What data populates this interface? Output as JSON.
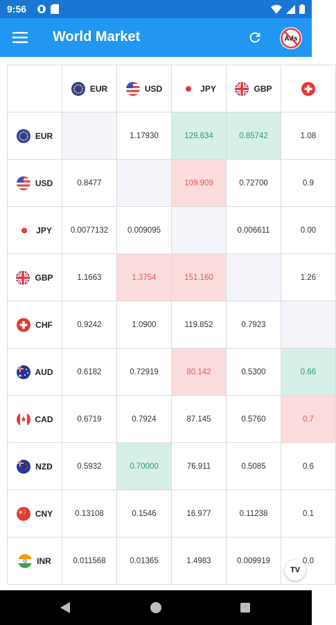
{
  "status_bar": {
    "time": "9:56"
  },
  "app_bar": {
    "title": "World Market",
    "ads_label": "Ads"
  },
  "columns": [
    {
      "code": "EUR",
      "flag": "eu-flag-icon"
    },
    {
      "code": "USD",
      "flag": "us-flag-icon"
    },
    {
      "code": "JPY",
      "flag": "jp-flag-icon"
    },
    {
      "code": "GBP",
      "flag": "gb-flag-icon"
    },
    {
      "code": "",
      "flag": "ch-flag-icon"
    }
  ],
  "rows": [
    {
      "code": "EUR",
      "flag": "eu-flag-icon",
      "cells": [
        {
          "v": "",
          "s": "diag"
        },
        {
          "v": "1.17930",
          "s": ""
        },
        {
          "v": "129.634",
          "s": "up"
        },
        {
          "v": "0.85742",
          "s": "up"
        },
        {
          "v": "1.08",
          "s": ""
        }
      ]
    },
    {
      "code": "USD",
      "flag": "us-flag-icon",
      "cells": [
        {
          "v": "0.8477",
          "s": ""
        },
        {
          "v": "",
          "s": "diag"
        },
        {
          "v": "109.909",
          "s": "down"
        },
        {
          "v": "0.72700",
          "s": ""
        },
        {
          "v": "0.9",
          "s": ""
        }
      ]
    },
    {
      "code": "JPY",
      "flag": "jp-flag-icon",
      "cells": [
        {
          "v": "0.0077132",
          "s": ""
        },
        {
          "v": "0.009095",
          "s": ""
        },
        {
          "v": "",
          "s": "diag"
        },
        {
          "v": "0.006611",
          "s": ""
        },
        {
          "v": "0.00",
          "s": ""
        }
      ]
    },
    {
      "code": "GBP",
      "flag": "gb-flag-icon",
      "cells": [
        {
          "v": "1.1663",
          "s": ""
        },
        {
          "v": "1.3754",
          "s": "down"
        },
        {
          "v": "151.160",
          "s": "down"
        },
        {
          "v": "",
          "s": "diag"
        },
        {
          "v": "1.26",
          "s": ""
        }
      ]
    },
    {
      "code": "CHF",
      "flag": "ch-flag-icon",
      "cells": [
        {
          "v": "0.9242",
          "s": ""
        },
        {
          "v": "1.0900",
          "s": ""
        },
        {
          "v": "119.852",
          "s": ""
        },
        {
          "v": "0.7923",
          "s": ""
        },
        {
          "v": "",
          "s": "diag"
        }
      ]
    },
    {
      "code": "AUD",
      "flag": "au-flag-icon",
      "cells": [
        {
          "v": "0.6182",
          "s": ""
        },
        {
          "v": "0.72919",
          "s": ""
        },
        {
          "v": "80.142",
          "s": "down"
        },
        {
          "v": "0.5300",
          "s": ""
        },
        {
          "v": "0.66",
          "s": "up"
        }
      ]
    },
    {
      "code": "CAD",
      "flag": "ca-flag-icon",
      "cells": [
        {
          "v": "0.6719",
          "s": ""
        },
        {
          "v": "0.7924",
          "s": ""
        },
        {
          "v": "87.145",
          "s": ""
        },
        {
          "v": "0.5760",
          "s": ""
        },
        {
          "v": "0.7",
          "s": "down"
        }
      ]
    },
    {
      "code": "NZD",
      "flag": "nz-flag-icon",
      "cells": [
        {
          "v": "0.5932",
          "s": ""
        },
        {
          "v": "0.70000",
          "s": "up"
        },
        {
          "v": "76.911",
          "s": ""
        },
        {
          "v": "0.5085",
          "s": ""
        },
        {
          "v": "0.6",
          "s": ""
        }
      ]
    },
    {
      "code": "CNY",
      "flag": "cn-flag-icon",
      "cells": [
        {
          "v": "0.13108",
          "s": ""
        },
        {
          "v": "0.1546",
          "s": ""
        },
        {
          "v": "16.977",
          "s": ""
        },
        {
          "v": "0.11238",
          "s": ""
        },
        {
          "v": "0.1",
          "s": ""
        }
      ]
    },
    {
      "code": "INR",
      "flag": "in-flag-icon",
      "cells": [
        {
          "v": "0.011568",
          "s": ""
        },
        {
          "v": "0.01365",
          "s": ""
        },
        {
          "v": "1.4983",
          "s": ""
        },
        {
          "v": "0.009919",
          "s": ""
        },
        {
          "v": "0.0",
          "s": ""
        }
      ]
    }
  ],
  "tv_badge": "TV",
  "colors": {
    "app_bar": "#2196f3",
    "status_bar": "#1976d2",
    "up_bg": "#d6efe8",
    "up_text": "#2e9a78",
    "down_bg": "#fbdcdc",
    "down_text": "#e05a5a"
  }
}
